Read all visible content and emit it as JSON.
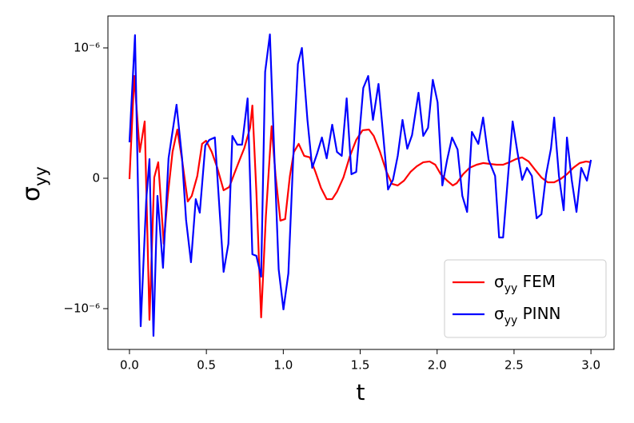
{
  "chart_data": {
    "type": "line",
    "x_label": "t",
    "y_label": "σyy",
    "xlim": [
      -0.14,
      3.15
    ],
    "ylim": [
      -1.313e-06,
      1.245e-06
    ],
    "xticks": [
      {
        "value": 0,
        "label": "0.0"
      },
      {
        "value": 0.5,
        "label": "0.5"
      },
      {
        "value": 1,
        "label": "1.0"
      },
      {
        "value": 1.5,
        "label": "1.5"
      },
      {
        "value": 2,
        "label": "2.0"
      },
      {
        "value": 2.5,
        "label": "2.5"
      },
      {
        "value": 3,
        "label": "3.0"
      }
    ],
    "yticks": [
      {
        "value": -1e-06,
        "label": "−10⁻⁶"
      },
      0,
      {
        "value": 1e-06,
        "label": "10⁻⁶"
      }
    ],
    "legend": "lower right",
    "series": [
      {
        "name": "σyy FEM",
        "color": "#ff0000",
        "x": [
          0,
          0.031,
          0.067,
          0.099,
          0.13,
          0.161,
          0.187,
          0.223,
          0.249,
          0.28,
          0.311,
          0.342,
          0.379,
          0.405,
          0.441,
          0.472,
          0.498,
          0.535,
          0.571,
          0.612,
          0.649,
          0.68,
          0.716,
          0.747,
          0.784,
          0.799,
          0.825,
          0.856,
          0.887,
          0.924,
          0.95,
          0.981,
          1.012,
          1.043,
          1.069,
          1.1,
          1.136,
          1.173,
          1.209,
          1.245,
          1.282,
          1.318,
          1.349,
          1.391,
          1.432,
          1.474,
          1.515,
          1.557,
          1.588,
          1.629,
          1.671,
          1.707,
          1.744,
          1.785,
          1.827,
          1.868,
          1.91,
          1.951,
          1.988,
          2.024,
          2.065,
          2.102,
          2.128,
          2.169,
          2.211,
          2.257,
          2.299,
          2.346,
          2.387,
          2.429,
          2.47,
          2.512,
          2.553,
          2.595,
          2.636,
          2.678,
          2.719,
          2.761,
          2.802,
          2.844,
          2.885,
          2.927,
          2.968,
          3.0
        ],
        "values": [
          -6e-09,
          7.85e-07,
          2.02e-07,
          4.36e-07,
          -1.086e-06,
          6e-09,
          1.23e-07,
          -5.03e-07,
          -1.35e-07,
          2.02e-07,
          3.74e-07,
          1.41e-07,
          -1.78e-07,
          -1.35e-07,
          1.8e-08,
          2.64e-07,
          2.88e-07,
          2.02e-07,
          8e-08,
          -9.2e-08,
          -6.7e-08,
          3.1e-08,
          1.41e-07,
          2.33e-07,
          3.87e-07,
          5.58e-07,
          -1.04e-07,
          -1.067e-06,
          -2.88e-07,
          3.99e-07,
          1.8e-08,
          -3.25e-07,
          -3.13e-07,
          1.8e-08,
          2.02e-07,
          2.64e-07,
          1.72e-07,
          1.6e-07,
          4.9e-08,
          -7.4e-08,
          -1.6e-07,
          -1.6e-07,
          -1.04e-07,
          6e-09,
          1.66e-07,
          2.94e-07,
          3.68e-07,
          3.74e-07,
          3.25e-07,
          2.02e-07,
          4.9e-08,
          -4.3e-08,
          -5.5e-08,
          -1.8e-08,
          4.9e-08,
          9.2e-08,
          1.23e-07,
          1.29e-07,
          1.04e-07,
          3.1e-08,
          -1.8e-08,
          -5.5e-08,
          -3.7e-08,
          3.1e-08,
          8e-08,
          1.04e-07,
          1.17e-07,
          1.1e-07,
          1.04e-07,
          1.04e-07,
          1.23e-07,
          1.47e-07,
          1.6e-07,
          1.29e-07,
          6.7e-08,
          6e-09,
          -3.1e-08,
          -3.1e-08,
          -6e-09,
          3.1e-08,
          8e-08,
          1.17e-07,
          1.29e-07,
          1.23e-07
        ]
      },
      {
        "name": "σyy PINN",
        "color": "#0000ff",
        "x": [
          0,
          0.036,
          0.073,
          0.109,
          0.13,
          0.156,
          0.182,
          0.218,
          0.254,
          0.306,
          0.342,
          0.368,
          0.4,
          0.431,
          0.457,
          0.493,
          0.519,
          0.555,
          0.612,
          0.643,
          0.669,
          0.701,
          0.732,
          0.768,
          0.799,
          0.825,
          0.856,
          0.882,
          0.913,
          0.939,
          0.97,
          1.001,
          1.033,
          1.064,
          1.095,
          1.121,
          1.157,
          1.188,
          1.22,
          1.251,
          1.282,
          1.318,
          1.349,
          1.38,
          1.412,
          1.443,
          1.474,
          1.52,
          1.552,
          1.583,
          1.619,
          1.65,
          1.681,
          1.713,
          1.744,
          1.775,
          1.806,
          1.837,
          1.879,
          1.91,
          1.941,
          1.972,
          2.003,
          2.034,
          2.065,
          2.097,
          2.133,
          2.164,
          2.195,
          2.226,
          2.268,
          2.299,
          2.335,
          2.377,
          2.403,
          2.429,
          2.465,
          2.491,
          2.522,
          2.553,
          2.584,
          2.616,
          2.647,
          2.678,
          2.709,
          2.74,
          2.761,
          2.792,
          2.823,
          2.844,
          2.875,
          2.906,
          2.937,
          2.974,
          3.0
        ],
        "values": [
          2.76e-07,
          1.098e-06,
          -1.135e-06,
          -1.66e-07,
          1.47e-07,
          -1.209e-06,
          -1.35e-07,
          -6.87e-07,
          1.53e-07,
          5.64e-07,
          1.53e-07,
          -3.19e-07,
          -6.44e-07,
          -1.6e-07,
          -2.64e-07,
          2.52e-07,
          2.94e-07,
          3.13e-07,
          -7.18e-07,
          -5.03e-07,
          3.25e-07,
          2.58e-07,
          2.58e-07,
          6.13e-07,
          -5.83e-07,
          -5.95e-07,
          -7.55e-07,
          8.16e-07,
          1.104e-06,
          2.64e-07,
          -6.99e-07,
          -1.006e-06,
          -7.3e-07,
          1.41e-07,
          8.77e-07,
          1e-06,
          4.48e-07,
          8e-08,
          1.9e-07,
          3.13e-07,
          1.53e-07,
          4.11e-07,
          2.02e-07,
          1.72e-07,
          6.13e-07,
          3.1e-08,
          4.9e-08,
          6.93e-07,
          7.85e-07,
          4.48e-07,
          7.24e-07,
          3.25e-07,
          -8.6e-08,
          -1.2e-08,
          1.72e-07,
          4.48e-07,
          2.27e-07,
          3.31e-07,
          6.56e-07,
          3.25e-07,
          3.87e-07,
          7.55e-07,
          5.83e-07,
          -5.5e-08,
          1.41e-07,
          3.13e-07,
          2.21e-07,
          -1.35e-07,
          -2.58e-07,
          3.56e-07,
          2.64e-07,
          4.66e-07,
          1.41e-07,
          1.8e-08,
          -4.54e-07,
          -4.54e-07,
          7.4e-08,
          4.36e-07,
          2.02e-07,
          -1.2e-08,
          8e-08,
          1.8e-08,
          -3.07e-07,
          -2.76e-07,
          3.1e-08,
          2.27e-07,
          4.66e-07,
          1.8e-08,
          -2.45e-07,
          3.13e-07,
          -1.2e-08,
          -2.58e-07,
          8e-08,
          -1.8e-08,
          1.41e-07
        ]
      }
    ]
  }
}
